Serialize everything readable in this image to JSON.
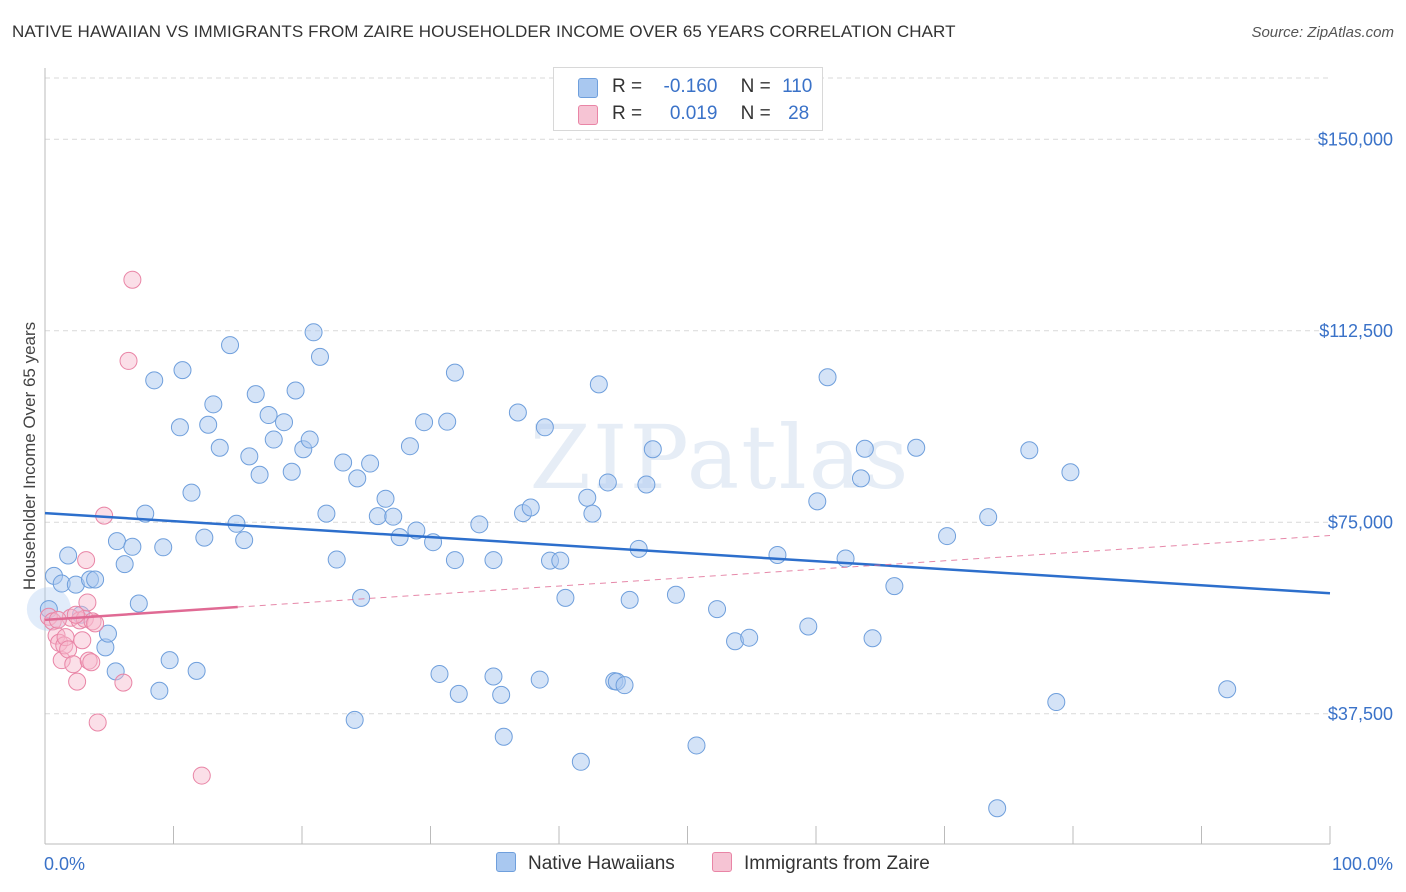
{
  "title": "NATIVE HAWAIIAN VS IMMIGRANTS FROM ZAIRE HOUSEHOLDER INCOME OVER 65 YEARS CORRELATION CHART",
  "source": "Source: ZipAtlas.com",
  "watermark": "ZIPatlas",
  "colors": {
    "blue_fill": "#a9c8f0",
    "blue_stroke": "#6f9fdc",
    "blue_line": "#2d6fcc",
    "pink_fill": "#f6b8cb",
    "pink_stroke": "#e985a6",
    "pink_line": "#e06a94",
    "axis_text": "#3a72c8",
    "grid": "#d9d9d9"
  },
  "legend_top": {
    "rows": [
      {
        "r_label": "R =",
        "r_value": "-0.160",
        "n_label": "N =",
        "n_value": "110"
      },
      {
        "r_label": "R =",
        "r_value": "0.019",
        "n_label": "N =",
        "n_value": "28"
      }
    ]
  },
  "legend_bottom": {
    "series1": "Native Hawaiians",
    "series2": "Immigrants from Zaire"
  },
  "chart_data": {
    "type": "scatter",
    "title": "NATIVE HAWAIIAN VS IMMIGRANTS FROM ZAIRE HOUSEHOLDER INCOME OVER 65 YEARS CORRELATION CHART",
    "xlabel": "",
    "ylabel": "Householder Income Over 65 years",
    "xlim": [
      0,
      100
    ],
    "ylim": [
      12000,
      162000
    ],
    "x_tick_labels": [
      "0.0%",
      "100.0%"
    ],
    "y_ticks": [
      37500,
      75000,
      112500,
      150000
    ],
    "y_tick_labels": [
      "$37,500",
      "$75,000",
      "$112,500",
      "$150,000"
    ],
    "series": [
      {
        "name": "Native Hawaiians",
        "r": -0.16,
        "n": 110,
        "trend": {
          "x": [
            0,
            100
          ],
          "y": [
            76800,
            61100
          ]
        },
        "points": [
          [
            0.3,
            58000
          ],
          [
            0.7,
            64500
          ],
          [
            1.3,
            63000
          ],
          [
            1.8,
            68500
          ],
          [
            2.4,
            62800
          ],
          [
            2.8,
            56900
          ],
          [
            3.5,
            63800
          ],
          [
            3.9,
            63800
          ],
          [
            4.7,
            50500
          ],
          [
            4.9,
            53200
          ],
          [
            5.5,
            45800
          ],
          [
            5.6,
            71300
          ],
          [
            6.2,
            66800
          ],
          [
            6.8,
            70200
          ],
          [
            7.3,
            59100
          ],
          [
            7.8,
            76700
          ],
          [
            8.5,
            102800
          ],
          [
            8.9,
            42000
          ],
          [
            9.2,
            70100
          ],
          [
            9.7,
            48000
          ],
          [
            10.5,
            93600
          ],
          [
            10.7,
            104800
          ],
          [
            11.4,
            80800
          ],
          [
            11.8,
            45900
          ],
          [
            12.4,
            72000
          ],
          [
            12.7,
            94100
          ],
          [
            13.1,
            98100
          ],
          [
            13.6,
            89600
          ],
          [
            14.4,
            109700
          ],
          [
            14.9,
            74700
          ],
          [
            15.5,
            71500
          ],
          [
            15.9,
            87900
          ],
          [
            16.4,
            100100
          ],
          [
            16.7,
            84300
          ],
          [
            17.4,
            96000
          ],
          [
            17.8,
            91200
          ],
          [
            18.6,
            94600
          ],
          [
            19.2,
            84900
          ],
          [
            19.5,
            100800
          ],
          [
            20.1,
            89300
          ],
          [
            20.6,
            91200
          ],
          [
            20.9,
            112200
          ],
          [
            21.4,
            107400
          ],
          [
            21.9,
            76700
          ],
          [
            22.7,
            67700
          ],
          [
            23.2,
            86700
          ],
          [
            24.1,
            36300
          ],
          [
            24.3,
            83600
          ],
          [
            24.6,
            60200
          ],
          [
            25.3,
            86500
          ],
          [
            25.9,
            76200
          ],
          [
            26.5,
            79600
          ],
          [
            27.1,
            76100
          ],
          [
            27.6,
            72100
          ],
          [
            28.4,
            89900
          ],
          [
            28.9,
            73400
          ],
          [
            29.5,
            94600
          ],
          [
            30.2,
            71100
          ],
          [
            30.7,
            45300
          ],
          [
            31.3,
            94700
          ],
          [
            31.9,
            67600
          ],
          [
            32.2,
            41400
          ],
          [
            31.9,
            104300
          ],
          [
            33.8,
            74600
          ],
          [
            34.9,
            67600
          ],
          [
            34.9,
            44800
          ],
          [
            35.7,
            33000
          ],
          [
            35.5,
            41200
          ],
          [
            36.8,
            96500
          ],
          [
            37.2,
            76800
          ],
          [
            37.8,
            77900
          ],
          [
            38.5,
            44200
          ],
          [
            38.9,
            93600
          ],
          [
            39.3,
            67500
          ],
          [
            40.1,
            67500
          ],
          [
            40.5,
            60200
          ],
          [
            41.7,
            28100
          ],
          [
            42.2,
            79800
          ],
          [
            42.6,
            76700
          ],
          [
            43.1,
            102000
          ],
          [
            43.8,
            82800
          ],
          [
            44.3,
            43900
          ],
          [
            44.5,
            43800
          ],
          [
            45.1,
            43100
          ],
          [
            45.5,
            59800
          ],
          [
            46.2,
            69800
          ],
          [
            46.8,
            82400
          ],
          [
            47.3,
            89300
          ],
          [
            49.1,
            60800
          ],
          [
            50.7,
            31300
          ],
          [
            52.3,
            58000
          ],
          [
            53.7,
            51700
          ],
          [
            54.8,
            52400
          ],
          [
            57.0,
            68600
          ],
          [
            59.4,
            54600
          ],
          [
            60.9,
            103400
          ],
          [
            60.1,
            79100
          ],
          [
            62.3,
            67900
          ],
          [
            63.8,
            89400
          ],
          [
            63.5,
            83600
          ],
          [
            64.4,
            52300
          ],
          [
            66.1,
            62500
          ],
          [
            67.8,
            89600
          ],
          [
            70.2,
            72300
          ],
          [
            73.4,
            76000
          ],
          [
            74.1,
            19000
          ],
          [
            76.6,
            89100
          ],
          [
            78.7,
            39800
          ],
          [
            79.8,
            84800
          ],
          [
            92.0,
            42300
          ]
        ]
      },
      {
        "name": "Immigrants from Zaire",
        "r": 0.019,
        "n": 28,
        "trend_solid": {
          "x": [
            0,
            15
          ],
          "y": [
            55900,
            58400
          ]
        },
        "trend_dashed": {
          "x": [
            15,
            100
          ],
          "y": [
            58400,
            72400
          ]
        },
        "points": [
          [
            0.3,
            56500
          ],
          [
            0.6,
            55600
          ],
          [
            0.9,
            52800
          ],
          [
            1.1,
            51400
          ],
          [
            1.3,
            48000
          ],
          [
            1.5,
            50900
          ],
          [
            1.6,
            52500
          ],
          [
            1.8,
            50100
          ],
          [
            2.0,
            56300
          ],
          [
            2.2,
            47200
          ],
          [
            2.5,
            43800
          ],
          [
            2.7,
            55800
          ],
          [
            2.9,
            51900
          ],
          [
            3.1,
            56100
          ],
          [
            3.3,
            59300
          ],
          [
            3.4,
            47900
          ],
          [
            3.6,
            47600
          ],
          [
            3.7,
            55600
          ],
          [
            3.9,
            55200
          ],
          [
            3.2,
            67600
          ],
          [
            4.1,
            35800
          ],
          [
            4.6,
            76300
          ],
          [
            6.1,
            43600
          ],
          [
            6.5,
            106600
          ],
          [
            6.8,
            122500
          ],
          [
            12.2,
            25400
          ],
          [
            1.0,
            55900
          ],
          [
            2.4,
            56900
          ]
        ]
      }
    ]
  }
}
